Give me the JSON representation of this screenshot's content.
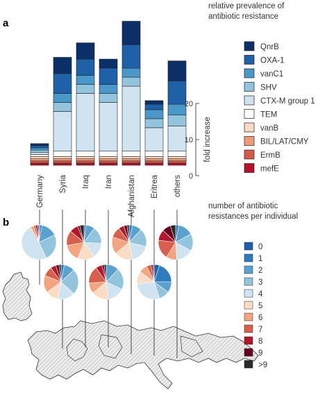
{
  "figure": {
    "panel_a": "a",
    "panel_b": "b"
  },
  "chart_data": [
    {
      "type": "bar",
      "stacked": true,
      "title": "relative prevalence of antibiotic resistance",
      "categories": [
        "Germany",
        "Syria",
        "Iraq",
        "Iran",
        "Afghanistan",
        "Eritrea",
        "others"
      ],
      "ylabel": "fold increase",
      "yticks": [
        0,
        10,
        20
      ],
      "ylim": [
        0,
        36
      ],
      "legend_position": "right",
      "series": [
        {
          "name": "mefE",
          "color": "#b5122e",
          "values": [
            0.6,
            0.6,
            0.6,
            0.6,
            0.6,
            0.6,
            0.6
          ]
        },
        {
          "name": "ErmB",
          "color": "#d65a48",
          "values": [
            0.6,
            0.6,
            0.6,
            0.6,
            0.6,
            0.6,
            0.6
          ]
        },
        {
          "name": "BIL/LAT/CMY",
          "color": "#f09c7b",
          "values": [
            0.6,
            0.6,
            0.6,
            0.6,
            0.6,
            0.6,
            0.6
          ]
        },
        {
          "name": "vanB",
          "color": "#fbd9c4",
          "values": [
            0.6,
            0.6,
            0.6,
            0.6,
            0.6,
            0.6,
            0.6
          ]
        },
        {
          "name": "TEM",
          "color": "#ffffff",
          "values": [
            0.6,
            1.5,
            1.5,
            1.5,
            1.5,
            1.5,
            1.5
          ]
        },
        {
          "name": "CTX-M group 1",
          "color": "#cfe3f0",
          "values": [
            0.6,
            11.0,
            16.0,
            13.5,
            18.0,
            6.5,
            7.0
          ]
        },
        {
          "name": "SHV",
          "color": "#93c4de",
          "values": [
            0.6,
            2.5,
            2.5,
            2.5,
            2.5,
            2.5,
            3.0
          ]
        },
        {
          "name": "vanC1",
          "color": "#4a98c9",
          "values": [
            0.6,
            2.5,
            2.5,
            2.5,
            2.5,
            2.5,
            3.0
          ]
        },
        {
          "name": "OXA-1",
          "color": "#1f61a8",
          "values": [
            0.6,
            5.5,
            4.5,
            4.5,
            6.5,
            1.5,
            6.5
          ]
        },
        {
          "name": "QnrB",
          "color": "#0b2f66",
          "values": [
            0.6,
            4.5,
            4.5,
            2.5,
            6.5,
            1.0,
            5.5
          ]
        }
      ]
    },
    {
      "type": "pie",
      "title": "number of antibiotic resistances per individual",
      "legend_position": "right",
      "labels": [
        "0",
        "1",
        "2",
        "3",
        "4",
        "5",
        "6",
        "7",
        "8",
        "9",
        ">9"
      ],
      "colors": [
        "#1f61a8",
        "#2e7bbd",
        "#5aa1d0",
        "#93c4de",
        "#cfe3f0",
        "#fbdcc7",
        "#f3a582",
        "#d6604d",
        "#b2182b",
        "#67001f",
        "#2b2b2b"
      ],
      "pies": [
        {
          "name": "Germany",
          "values": [
            1,
            2,
            15,
            25,
            49,
            0,
            3,
            2,
            2,
            1,
            0
          ]
        },
        {
          "name": "Syria",
          "values": [
            0,
            3,
            10,
            24,
            16,
            12,
            16,
            9,
            5,
            3,
            2
          ]
        },
        {
          "name": "Iraq",
          "values": [
            0,
            2,
            8,
            16,
            14,
            16,
            16,
            14,
            8,
            2,
            4
          ]
        },
        {
          "name": "Iran",
          "values": [
            0,
            0,
            12,
            20,
            16,
            16,
            10,
            16,
            6,
            2,
            2
          ]
        },
        {
          "name": "Afghanistan",
          "values": [
            0,
            3,
            9,
            17,
            18,
            17,
            16,
            10,
            5,
            3,
            2
          ]
        },
        {
          "name": "Eritrea",
          "values": [
            5,
            20,
            10,
            10,
            28,
            12,
            8,
            4,
            2,
            1,
            0
          ]
        },
        {
          "name": "others",
          "values": [
            0,
            3,
            14,
            16,
            16,
            0,
            10,
            18,
            10,
            8,
            5
          ]
        }
      ]
    }
  ]
}
